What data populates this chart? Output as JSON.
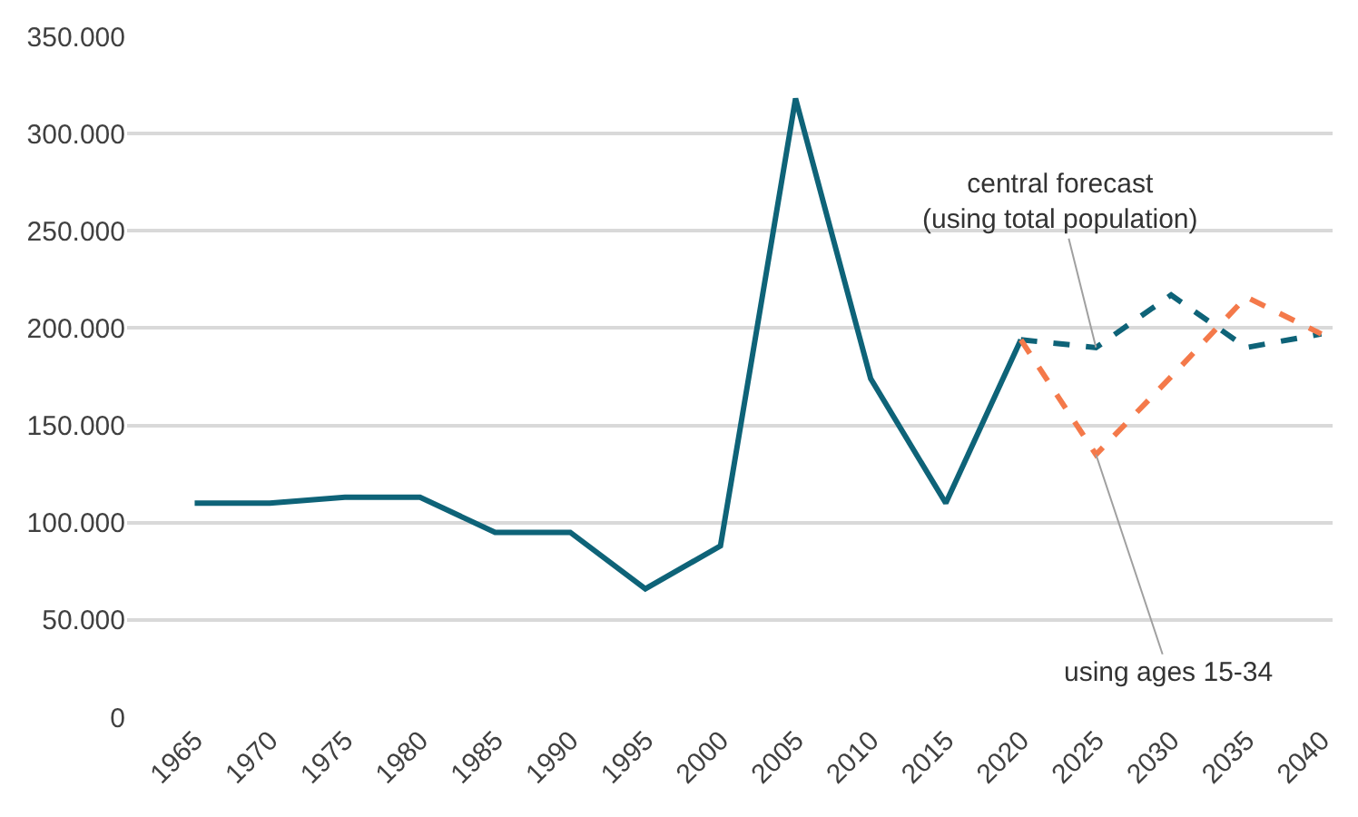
{
  "chart_data": {
    "type": "line",
    "categories": [
      "1965",
      "1970",
      "1975",
      "1980",
      "1985",
      "1990",
      "1995",
      "2000",
      "2005",
      "2010",
      "2015",
      "2020",
      "2025",
      "2030",
      "2035",
      "2040"
    ],
    "series": [
      {
        "color": "#0e6378",
        "line_style": "solid",
        "values": [
          110000,
          110000,
          113000,
          113000,
          95000,
          95000,
          66000,
          88000,
          318000,
          174000,
          110000,
          194000,
          null,
          null,
          null,
          null
        ]
      },
      {
        "color": "#0e6378",
        "line_style": "dashed",
        "values": [
          null,
          null,
          null,
          null,
          null,
          null,
          null,
          null,
          null,
          null,
          null,
          194000,
          190000,
          217000,
          190000,
          197000
        ]
      },
      {
        "color": "#f4794a",
        "line_style": "dashed",
        "values": [
          null,
          null,
          null,
          null,
          null,
          null,
          null,
          null,
          null,
          null,
          null,
          194000,
          135000,
          175000,
          216000,
          197000
        ]
      }
    ],
    "ylim": [
      0,
      350000
    ],
    "yticks": [
      {
        "value": 0,
        "label": "0"
      },
      {
        "value": 50000,
        "label": "50.000"
      },
      {
        "value": 100000,
        "label": "100.000"
      },
      {
        "value": 150000,
        "label": "150.000"
      },
      {
        "value": 200000,
        "label": "200.000"
      },
      {
        "value": 250000,
        "label": "250.000"
      },
      {
        "value": 300000,
        "label": "300.000"
      },
      {
        "value": 350000,
        "label": "350.000"
      }
    ],
    "grid": "y",
    "marker": "none",
    "annotations": [
      {
        "text": "central forecast\n(using total population)",
        "x": "2025",
        "y": 190000
      },
      {
        "text": "using ages 15-34",
        "x": "2025",
        "y": 135000
      }
    ]
  }
}
